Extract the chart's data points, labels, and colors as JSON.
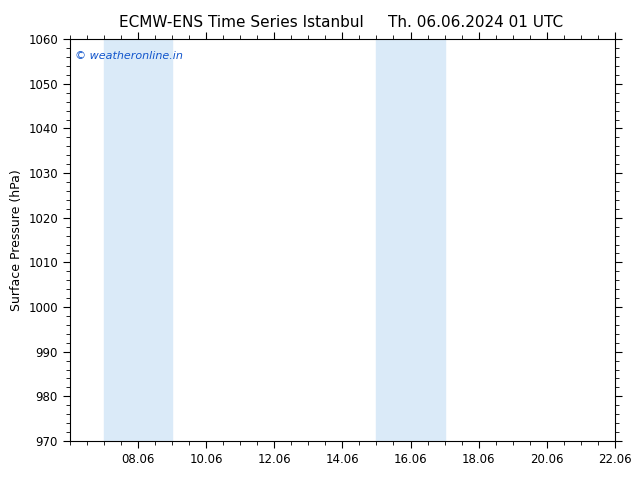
{
  "title_left": "ECMW-ENS Time Series Istanbul",
  "title_right": "Th. 06.06.2024 01 UTC",
  "ylabel": "Surface Pressure (hPa)",
  "ylim": [
    970,
    1060
  ],
  "yticks": [
    970,
    980,
    990,
    1000,
    1010,
    1020,
    1030,
    1040,
    1050,
    1060
  ],
  "x_total_days": 16,
  "xtick_labels": [
    "08.06",
    "10.06",
    "12.06",
    "14.06",
    "16.06",
    "18.06",
    "20.06",
    "22.06"
  ],
  "xtick_positions_days": [
    2,
    4,
    6,
    8,
    10,
    12,
    14,
    16
  ],
  "shaded_regions": [
    {
      "start_day": 1.0,
      "end_day": 3.0
    },
    {
      "start_day": 9.0,
      "end_day": 11.0
    }
  ],
  "shade_color": "#daeaf8",
  "background_color": "#ffffff",
  "watermark_text": "© weatheronline.in",
  "watermark_color": "#1155cc",
  "title_color": "#000000",
  "axis_color": "#000000",
  "tick_color": "#000000",
  "title_fontsize": 11,
  "label_fontsize": 9,
  "tick_fontsize": 8.5,
  "watermark_fontsize": 8
}
